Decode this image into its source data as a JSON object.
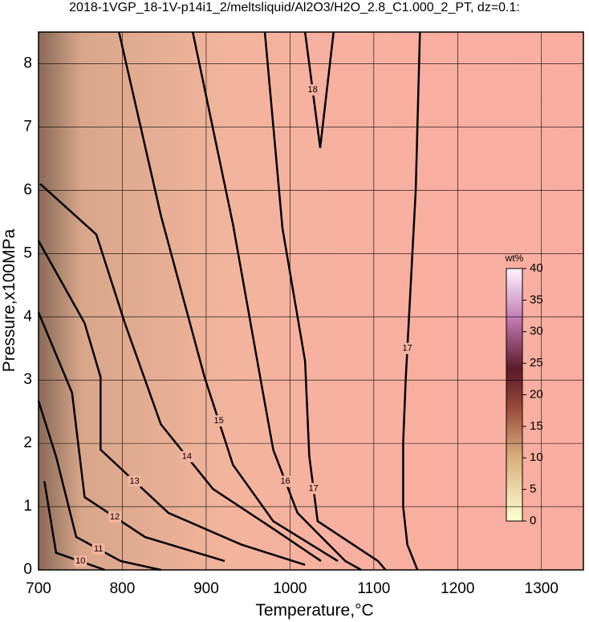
{
  "chart_data": {
    "type": "contour",
    "title": "2018-1VGP_18-1V-p14i1_2/meltsliquid/Al2O3/H2O_2.8_C1.000_2_PT, dz=0.1:",
    "x_label": "Temperature,°C",
    "y_label": "Pressure,x100MPa",
    "xlim": [
      700,
      1350
    ],
    "ylim": [
      0,
      8.5
    ],
    "xticks": [
      700,
      800,
      900,
      1000,
      1100,
      1200,
      1300
    ],
    "yticks": [
      0,
      1,
      2,
      3,
      4,
      5,
      6,
      7,
      8
    ],
    "grid": true,
    "contours": [
      {
        "level": 17,
        "x": [
          1152,
          1140,
          1135,
          1135,
          1138,
          1142,
          1146,
          1150,
          1152,
          1155
        ],
        "y": [
          0,
          0.4,
          1,
          2,
          3,
          4,
          5,
          6,
          7,
          8.5
        ]
      },
      {
        "level": 17,
        "x": [
          1114,
          1105,
          1033,
          1023,
          1018,
          991,
          970
        ],
        "y": [
          0,
          0.14,
          0.77,
          1.8,
          3.3,
          5.4,
          8.5
        ]
      },
      {
        "level": 16,
        "x": [
          1085,
          1066,
          1009,
          980,
          966,
          932,
          884
        ],
        "y": [
          0,
          0.14,
          0.9,
          1.9,
          2.93,
          5.46,
          8.5
        ]
      },
      {
        "level": 15,
        "x": [
          1057,
          980,
          932,
          898,
          846,
          796
        ],
        "y": [
          0.14,
          0.77,
          1.66,
          3.05,
          5.6,
          8.5
        ]
      },
      {
        "level": 14,
        "x": [
          1037,
          980,
          908,
          846,
          803,
          769,
          702
        ],
        "y": [
          0.14,
          0.65,
          1.28,
          2.3,
          3.9,
          5.3,
          6.1
        ]
      },
      {
        "level": 13,
        "x": [
          1018,
          942,
          855,
          774,
          774,
          755,
          700
        ],
        "y": [
          0.08,
          0.4,
          0.9,
          1.9,
          3.05,
          3.9,
          5.2
        ]
      },
      {
        "level": 12,
        "x": [
          922,
          827,
          755,
          740,
          700
        ],
        "y": [
          0.14,
          0.52,
          1.15,
          2.8,
          4.07
        ]
      },
      {
        "level": 11,
        "x": [
          846,
          798,
          745,
          721,
          700
        ],
        "y": [
          0,
          0.14,
          0.52,
          1.79,
          2.67
        ]
      },
      {
        "level": 10,
        "x": [
          779,
          721,
          707
        ],
        "y": [
          0,
          0.27,
          1.4
        ]
      },
      {
        "level": 18,
        "x": [
          1018,
          1036,
          1052
        ],
        "y": [
          8.5,
          6.67,
          8.5
        ]
      }
    ],
    "colorbar": {
      "label": "wt%",
      "lim": [
        0,
        40
      ],
      "ticks": [
        0,
        5,
        10,
        15,
        20,
        25,
        30,
        35,
        40
      ]
    }
  }
}
